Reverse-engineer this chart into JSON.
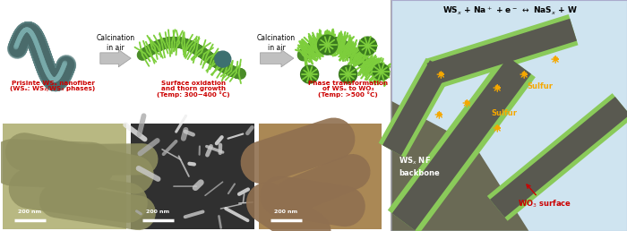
{
  "label1_line1": "Prisinte WSₓ nanofiber",
  "label1_line2": "(WSₓ: WS₂/WS₃ phases)",
  "label2_line1": "Surface oxidation",
  "label2_line2": "and thorn growth",
  "label2_line3": "(Temp: 300~400 °C)",
  "label3_line1": "Phase transformation",
  "label3_line2": "of WSₓ to WO₃",
  "label3_line3": "(Temp: >500 °C)",
  "calc1": "Calcination\nin air",
  "calc2": "Calcination\nin air",
  "eq": "WSₓ + Na⁺ + e⁻ ↔ NaSₓ + W",
  "sulfur_label": "Sulfur",
  "backbone_label": "WSₓ NF\nbackbone",
  "wo3_label": "WO₃ surface",
  "dark_fiber_color": "#4a6b6b",
  "green_body": "#4a8c28",
  "green_thorn": "#7dce3c",
  "green_blob": "#3a7a1e",
  "green_shell": "#8aca5a",
  "dark_core": "#555550",
  "orange_color": "#f5a800",
  "red_color": "#cc0000",
  "label_red": "#cc0000",
  "label_green_dark": "#cc3300",
  "label2_color": "#558800",
  "scale_bar": "200 nm",
  "right_bg": "#cfe4f0",
  "backbone_dark": "#6a6a55"
}
